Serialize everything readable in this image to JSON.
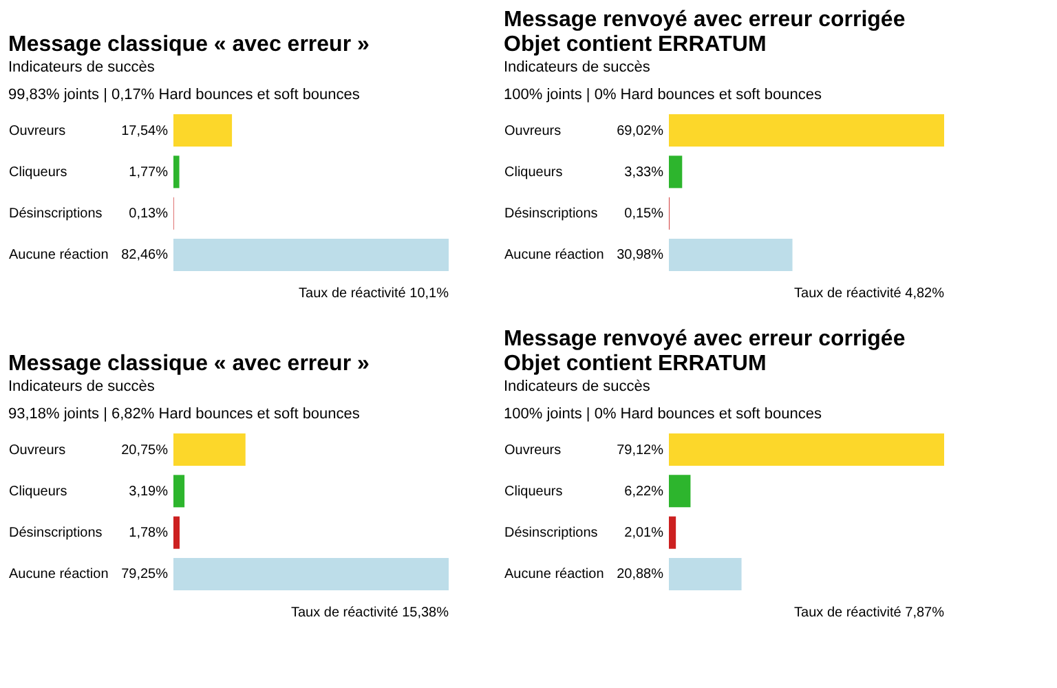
{
  "chart_data": [
    {
      "type": "bar",
      "orientation": "horizontal",
      "title": "Message classique « avec erreur »",
      "subtitle": "Indicateurs de succès",
      "categories": [
        "Ouvreurs",
        "Cliqueurs",
        "Désinscriptions",
        "Aucune réaction"
      ],
      "values": [
        17.54,
        1.77,
        0.13,
        82.46
      ],
      "colors": [
        "#fcd72a",
        "#2db52d",
        "#cc2020",
        "#bddde9"
      ],
      "value_labels": [
        "17,54%",
        "1,77%",
        "0,13%",
        "82,46%"
      ],
      "annotations": [
        "99,83% joints   |   0,17% Hard bounces et soft bounces",
        "Taux de réactivité    10,1%"
      ],
      "grid": false
    },
    {
      "type": "bar",
      "orientation": "horizontal",
      "title": "Message renvoyé avec erreur corrigée\nObjet contient ERRATUM",
      "subtitle": "Indicateurs de succès",
      "categories": [
        "Ouvreurs",
        "Cliqueurs",
        "Désinscriptions",
        "Aucune réaction"
      ],
      "values": [
        69.02,
        3.33,
        0.15,
        30.98
      ],
      "colors": [
        "#fcd72a",
        "#2db52d",
        "#cc2020",
        "#bddde9"
      ],
      "value_labels": [
        "69,02%",
        "3,33%",
        "0,15%",
        "30,98%"
      ],
      "annotations": [
        "100% joints   |   0% Hard bounces et soft bounces",
        "Taux de réactivité    4,82%"
      ],
      "grid": false
    },
    {
      "type": "bar",
      "orientation": "horizontal",
      "title": "Message classique « avec erreur »",
      "subtitle": "Indicateurs de succès",
      "categories": [
        "Ouvreurs",
        "Cliqueurs",
        "Désinscriptions",
        "Aucune réaction"
      ],
      "values": [
        20.75,
        3.19,
        1.78,
        79.25
      ],
      "colors": [
        "#fcd72a",
        "#2db52d",
        "#cc2020",
        "#bddde9"
      ],
      "value_labels": [
        "20,75%",
        "3,19%",
        "1,78%",
        "79,25%"
      ],
      "annotations": [
        "93,18% joints   |   6,82% Hard bounces et soft bounces",
        "Taux de réactivité    15,38%"
      ],
      "grid": false
    },
    {
      "type": "bar",
      "orientation": "horizontal",
      "title": "Message renvoyé avec erreur corrigée\nObjet contient ERRATUM",
      "subtitle": "Indicateurs de succès",
      "categories": [
        "Ouvreurs",
        "Cliqueurs",
        "Désinscriptions",
        "Aucune réaction"
      ],
      "values": [
        79.12,
        6.22,
        2.01,
        20.88
      ],
      "colors": [
        "#fcd72a",
        "#2db52d",
        "#cc2020",
        "#bddde9"
      ],
      "value_labels": [
        "79,12%",
        "6,22%",
        "2,01%",
        "20,88%"
      ],
      "annotations": [
        "100% joints   |   0% Hard bounces et soft bounces",
        "Taux de réactivité    7,87%"
      ],
      "grid": false
    }
  ]
}
